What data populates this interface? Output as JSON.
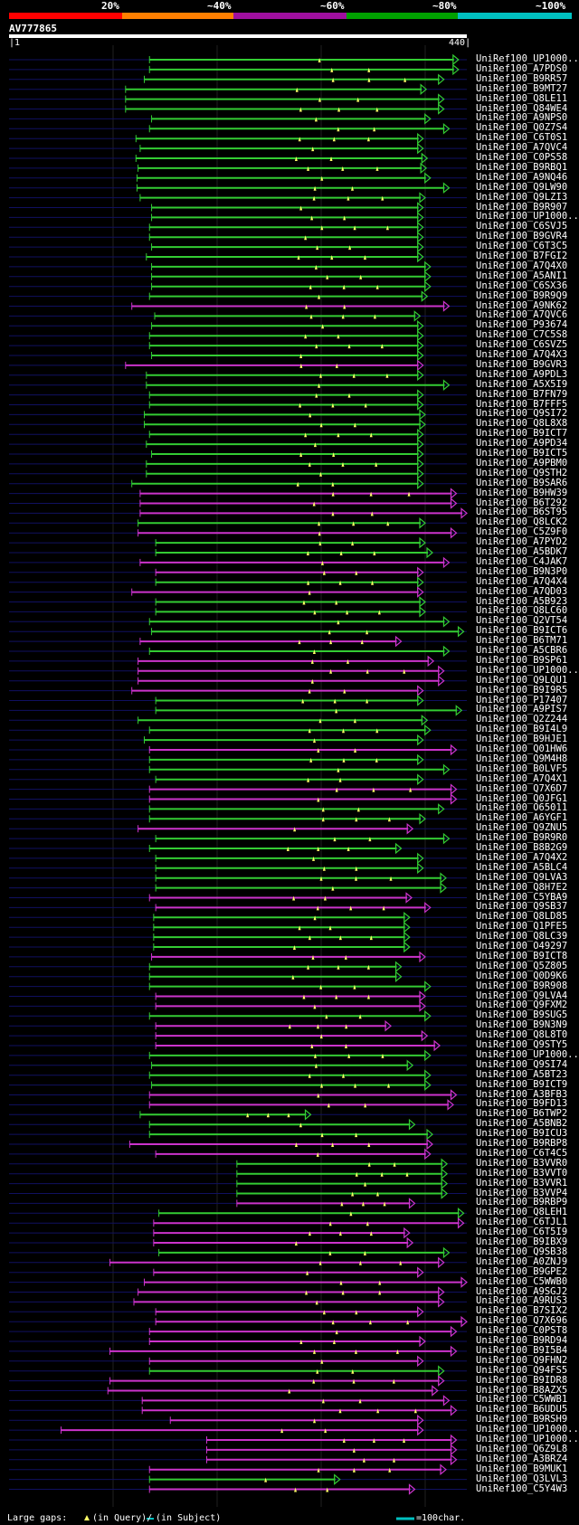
{
  "colors": {
    "bg": "#000000",
    "identity_bins": [
      "#ff0000",
      "#ff7f00",
      "#9f0f9f",
      "#00a000",
      "#00c0c0"
    ],
    "green": "#33cc33",
    "magenta": "#cc33cc",
    "dashes": "#101060",
    "grid": "#202020",
    "marker": "#ffff66"
  },
  "header": {
    "scale_labels": [
      "20%",
      "~40%",
      "~60%",
      "~80%",
      "~100%"
    ]
  },
  "query": {
    "id": "AV777865",
    "start_label": "1",
    "end_label": "440",
    "length": 440
  },
  "footer": {
    "gaps_label": "Large gaps:",
    "query_note": "(in Query)/",
    "subject_note": "(in Subject)",
    "scale_note": "=100char."
  },
  "hits": [
    {
      "name": "UniRef100_UP1000..",
      "s": 135,
      "e": 432,
      "c": "g"
    },
    {
      "name": "UniRef100_A7PDS0",
      "s": 135,
      "e": 432,
      "c": "g"
    },
    {
      "name": "UniRef100_B9RR57",
      "s": 130,
      "e": 418,
      "c": "g"
    },
    {
      "name": "UniRef100_B9MT27",
      "s": 112,
      "e": 401,
      "c": "g"
    },
    {
      "name": "UniRef100_Q8LE11",
      "s": 112,
      "e": 418,
      "c": "g"
    },
    {
      "name": "UniRef100_Q84WE4",
      "s": 112,
      "e": 418,
      "c": "g"
    },
    {
      "name": "UniRef100_A9NPS0",
      "s": 137,
      "e": 405,
      "c": "g"
    },
    {
      "name": "UniRef100_Q0Z7S4",
      "s": 135,
      "e": 423,
      "c": "g"
    },
    {
      "name": "UniRef100_C6T0S1",
      "s": 122,
      "e": 398,
      "c": "g"
    },
    {
      "name": "UniRef100_A7QVC4",
      "s": 126,
      "e": 398,
      "c": "g"
    },
    {
      "name": "UniRef100_C0PS58",
      "s": 122,
      "e": 402,
      "c": "g"
    },
    {
      "name": "UniRef100_B9RBQ1",
      "s": 124,
      "e": 401,
      "c": "g"
    },
    {
      "name": "UniRef100_A9NQ46",
      "s": 123,
      "e": 405,
      "c": "g"
    },
    {
      "name": "UniRef100_Q9LW90",
      "s": 123,
      "e": 423,
      "c": "g"
    },
    {
      "name": "UniRef100_Q9LZI3",
      "s": 126,
      "e": 400,
      "c": "g"
    },
    {
      "name": "UniRef100_B9R907",
      "s": 137,
      "e": 398,
      "c": "g"
    },
    {
      "name": "UniRef100_UP1000..",
      "s": 137,
      "e": 398,
      "c": "g"
    },
    {
      "name": "UniRef100_C6SVJ5",
      "s": 135,
      "e": 398,
      "c": "g"
    },
    {
      "name": "UniRef100_B9GVR4",
      "s": 135,
      "e": 398,
      "c": "g"
    },
    {
      "name": "UniRef100_C6T3C5",
      "s": 137,
      "e": 398,
      "c": "g"
    },
    {
      "name": "UniRef100_B7FGI2",
      "s": 132,
      "e": 398,
      "c": "g"
    },
    {
      "name": "UniRef100_A7Q4X0",
      "s": 137,
      "e": 405,
      "c": "g"
    },
    {
      "name": "UniRef100_A5ANI1",
      "s": 137,
      "e": 405,
      "c": "g"
    },
    {
      "name": "UniRef100_C6SX36",
      "s": 137,
      "e": 405,
      "c": "g"
    },
    {
      "name": "UniRef100_B9R9Q9",
      "s": 135,
      "e": 402,
      "c": "g"
    },
    {
      "name": "UniRef100_A9NK62",
      "s": 118,
      "e": 423,
      "c": "m"
    },
    {
      "name": "UniRef100_A7QVC6",
      "s": 140,
      "e": 395,
      "c": "g"
    },
    {
      "name": "UniRef100_P93674",
      "s": 137,
      "e": 398,
      "c": "g"
    },
    {
      "name": "UniRef100_C7C5S8",
      "s": 135,
      "e": 398,
      "c": "g"
    },
    {
      "name": "UniRef100_C6SVZ5",
      "s": 135,
      "e": 398,
      "c": "g"
    },
    {
      "name": "UniRef100_A7Q4X3",
      "s": 137,
      "e": 398,
      "c": "g"
    },
    {
      "name": "UniRef100_B9GVR3",
      "s": 112,
      "e": 398,
      "c": "m"
    },
    {
      "name": "UniRef100_A9PDL3",
      "s": 132,
      "e": 398,
      "c": "g"
    },
    {
      "name": "UniRef100_A5X5I9",
      "s": 132,
      "e": 423,
      "c": "g"
    },
    {
      "name": "UniRef100_B7FN79",
      "s": 135,
      "e": 398,
      "c": "g"
    },
    {
      "name": "UniRef100_B7FFF5",
      "s": 135,
      "e": 398,
      "c": "g"
    },
    {
      "name": "UniRef100_Q9SI72",
      "s": 130,
      "e": 400,
      "c": "g"
    },
    {
      "name": "UniRef100_Q8L8X8",
      "s": 130,
      "e": 400,
      "c": "g"
    },
    {
      "name": "UniRef100_B9ICT7",
      "s": 135,
      "e": 398,
      "c": "g"
    },
    {
      "name": "UniRef100_A9PD34",
      "s": 132,
      "e": 398,
      "c": "g"
    },
    {
      "name": "UniRef100_B9ICT5",
      "s": 137,
      "e": 398,
      "c": "g"
    },
    {
      "name": "UniRef100_A9PBM0",
      "s": 132,
      "e": 398,
      "c": "g"
    },
    {
      "name": "UniRef100_Q9STH2",
      "s": 132,
      "e": 398,
      "c": "g"
    },
    {
      "name": "UniRef100_B9SAR6",
      "s": 118,
      "e": 398,
      "c": "g"
    },
    {
      "name": "UniRef100_B9HW39",
      "s": 126,
      "e": 430,
      "c": "m"
    },
    {
      "name": "UniRef100_B6T292",
      "s": 126,
      "e": 430,
      "c": "m"
    },
    {
      "name": "UniRef100_B6ST95",
      "s": 126,
      "e": 440,
      "c": "m"
    },
    {
      "name": "UniRef100_Q8LCK2",
      "s": 124,
      "e": 400,
      "c": "g"
    },
    {
      "name": "UniRef100_C5Z9F0",
      "s": 124,
      "e": 430,
      "c": "m"
    },
    {
      "name": "UniRef100_A7PYD2",
      "s": 141,
      "e": 400,
      "c": "g"
    },
    {
      "name": "UniRef100_A5BDK7",
      "s": 141,
      "e": 407,
      "c": "g"
    },
    {
      "name": "UniRef100_C4JAK7",
      "s": 126,
      "e": 423,
      "c": "m"
    },
    {
      "name": "UniRef100_B9N3P0",
      "s": 141,
      "e": 398,
      "c": "m"
    },
    {
      "name": "UniRef100_A7Q4X4",
      "s": 141,
      "e": 398,
      "c": "g"
    },
    {
      "name": "UniRef100_A7QD03",
      "s": 118,
      "e": 398,
      "c": "m"
    },
    {
      "name": "UniRef100_A5B923",
      "s": 141,
      "e": 400,
      "c": "g"
    },
    {
      "name": "UniRef100_Q8LC60",
      "s": 141,
      "e": 400,
      "c": "g"
    },
    {
      "name": "UniRef100_Q2VT54",
      "s": 135,
      "e": 423,
      "c": "g"
    },
    {
      "name": "UniRef100_B9ICT6",
      "s": 137,
      "e": 437,
      "c": "g"
    },
    {
      "name": "UniRef100_B6TM71",
      "s": 126,
      "e": 377,
      "c": "m"
    },
    {
      "name": "UniRef100_A5CBR6",
      "s": 135,
      "e": 423,
      "c": "g"
    },
    {
      "name": "UniRef100_B9SP61",
      "s": 124,
      "e": 408,
      "c": "m"
    },
    {
      "name": "UniRef100_UP1000..",
      "s": 124,
      "e": 418,
      "c": "m"
    },
    {
      "name": "UniRef100_Q9LQU1",
      "s": 124,
      "e": 418,
      "c": "m"
    },
    {
      "name": "UniRef100_B9I9R5",
      "s": 118,
      "e": 398,
      "c": "m"
    },
    {
      "name": "UniRef100_P17407",
      "s": 141,
      "e": 398,
      "c": "g"
    },
    {
      "name": "UniRef100_A9PIS7",
      "s": 141,
      "e": 435,
      "c": "g"
    },
    {
      "name": "UniRef100_Q2Z244",
      "s": 124,
      "e": 402,
      "c": "g"
    },
    {
      "name": "UniRef100_B9I4L9",
      "s": 135,
      "e": 405,
      "c": "g"
    },
    {
      "name": "UniRef100_B9HJE1",
      "s": 130,
      "e": 398,
      "c": "g"
    },
    {
      "name": "UniRef100_Q01HW6",
      "s": 135,
      "e": 430,
      "c": "m"
    },
    {
      "name": "UniRef100_Q9M4H8",
      "s": 135,
      "e": 398,
      "c": "g"
    },
    {
      "name": "UniRef100_B0LVF5",
      "s": 135,
      "e": 423,
      "c": "g"
    },
    {
      "name": "UniRef100_A7Q4X1",
      "s": 141,
      "e": 398,
      "c": "g"
    },
    {
      "name": "UniRef100_Q7X6D7",
      "s": 135,
      "e": 430,
      "c": "m"
    },
    {
      "name": "UniRef100_Q0JFG1",
      "s": 135,
      "e": 430,
      "c": "m"
    },
    {
      "name": "UniRef100_O65011",
      "s": 135,
      "e": 418,
      "c": "g"
    },
    {
      "name": "UniRef100_A6YGF1",
      "s": 135,
      "e": 400,
      "c": "g"
    },
    {
      "name": "UniRef100_Q9ZNU5",
      "s": 124,
      "e": 388,
      "c": "m"
    },
    {
      "name": "UniRef100_B9R9R0",
      "s": 141,
      "e": 423,
      "c": "g"
    },
    {
      "name": "UniRef100_B8B2G9",
      "s": 135,
      "e": 377,
      "c": "g"
    },
    {
      "name": "UniRef100_A7Q4X2",
      "s": 141,
      "e": 398,
      "c": "g"
    },
    {
      "name": "UniRef100_A5BLC4",
      "s": 141,
      "e": 398,
      "c": "g"
    },
    {
      "name": "UniRef100_Q9LVA3",
      "s": 141,
      "e": 420,
      "c": "g"
    },
    {
      "name": "UniRef100_Q8H7E2",
      "s": 141,
      "e": 420,
      "c": "g"
    },
    {
      "name": "UniRef100_C5YBA9",
      "s": 135,
      "e": 387,
      "c": "m"
    },
    {
      "name": "UniRef100_Q9SB37",
      "s": 141,
      "e": 405,
      "c": "m"
    },
    {
      "name": "UniRef100_Q8LD85",
      "s": 139,
      "e": 385,
      "c": "g"
    },
    {
      "name": "UniRef100_Q1PFE5",
      "s": 139,
      "e": 385,
      "c": "g"
    },
    {
      "name": "UniRef100_Q8LC39",
      "s": 139,
      "e": 385,
      "c": "g"
    },
    {
      "name": "UniRef100_O49297",
      "s": 139,
      "e": 385,
      "c": "g"
    },
    {
      "name": "UniRef100_B9ICT8",
      "s": 137,
      "e": 400,
      "c": "m"
    },
    {
      "name": "UniRef100_Q5Z805",
      "s": 135,
      "e": 377,
      "c": "g"
    },
    {
      "name": "UniRef100_Q0D9K6",
      "s": 135,
      "e": 377,
      "c": "g"
    },
    {
      "name": "UniRef100_B9R908",
      "s": 135,
      "e": 405,
      "c": "g"
    },
    {
      "name": "UniRef100_Q9LVA4",
      "s": 141,
      "e": 400,
      "c": "m"
    },
    {
      "name": "UniRef100_Q9FXM2",
      "s": 141,
      "e": 400,
      "c": "m"
    },
    {
      "name": "UniRef100_B9SUG5",
      "s": 135,
      "e": 405,
      "c": "g"
    },
    {
      "name": "UniRef100_B9N3N9",
      "s": 141,
      "e": 367,
      "c": "m"
    },
    {
      "name": "UniRef100_Q8L8T0",
      "s": 141,
      "e": 402,
      "c": "m"
    },
    {
      "name": "UniRef100_Q9STY5",
      "s": 141,
      "e": 414,
      "c": "m"
    },
    {
      "name": "UniRef100_UP1000..",
      "s": 135,
      "e": 405,
      "c": "g"
    },
    {
      "name": "UniRef100_Q9SI74",
      "s": 137,
      "e": 388,
      "c": "g"
    },
    {
      "name": "UniRef100_A5BT23",
      "s": 135,
      "e": 405,
      "c": "g"
    },
    {
      "name": "UniRef100_B9ICT9",
      "s": 137,
      "e": 405,
      "c": "g"
    },
    {
      "name": "UniRef100_A3BFB3",
      "s": 135,
      "e": 430,
      "c": "m"
    },
    {
      "name": "UniRef100_B9FD13",
      "s": 135,
      "e": 427,
      "c": "m"
    },
    {
      "name": "UniRef100_B6TWP2",
      "s": 126,
      "e": 290,
      "c": "g"
    },
    {
      "name": "UniRef100_A5BNB2",
      "s": 135,
      "e": 390,
      "c": "g"
    },
    {
      "name": "UniRef100_B9ICU3",
      "s": 135,
      "e": 407,
      "c": "g"
    },
    {
      "name": "UniRef100_B9RBP8",
      "s": 116,
      "e": 407,
      "c": "m"
    },
    {
      "name": "UniRef100_C6T4C5",
      "s": 141,
      "e": 405,
      "c": "m"
    },
    {
      "name": "UniRef100_B3VVR0",
      "s": 219,
      "e": 421,
      "c": "g"
    },
    {
      "name": "UniRef100_B3VVT0",
      "s": 219,
      "e": 421,
      "c": "g"
    },
    {
      "name": "UniRef100_B3VVR1",
      "s": 219,
      "e": 421,
      "c": "g"
    },
    {
      "name": "UniRef100_B3VVP4",
      "s": 219,
      "e": 421,
      "c": "g"
    },
    {
      "name": "UniRef100_B9RBP9",
      "s": 219,
      "e": 390,
      "c": "m"
    },
    {
      "name": "UniRef100_Q8LEH1",
      "s": 144,
      "e": 437,
      "c": "g"
    },
    {
      "name": "UniRef100_C6TJL1",
      "s": 139,
      "e": 437,
      "c": "m"
    },
    {
      "name": "UniRef100_C6T5I9",
      "s": 139,
      "e": 385,
      "c": "m"
    },
    {
      "name": "UniRef100_B9IBX9",
      "s": 139,
      "e": 388,
      "c": "m"
    },
    {
      "name": "UniRef100_Q9SB38",
      "s": 144,
      "e": 423,
      "c": "g"
    },
    {
      "name": "UniRef100_A0ZNJ9",
      "s": 97,
      "e": 418,
      "c": "m"
    },
    {
      "name": "UniRef100_B9GPE2",
      "s": 139,
      "e": 398,
      "c": "m"
    },
    {
      "name": "UniRef100_C5WWB0",
      "s": 130,
      "e": 440,
      "c": "m"
    },
    {
      "name": "UniRef100_A9SGJ2",
      "s": 124,
      "e": 418,
      "c": "m"
    },
    {
      "name": "UniRef100_A9RUS3",
      "s": 120,
      "e": 418,
      "c": "m"
    },
    {
      "name": "UniRef100_B7SIX2",
      "s": 141,
      "e": 398,
      "c": "m"
    },
    {
      "name": "UniRef100_Q7X696",
      "s": 141,
      "e": 440,
      "c": "m"
    },
    {
      "name": "UniRef100_C0PST8",
      "s": 135,
      "e": 430,
      "c": "m"
    },
    {
      "name": "UniRef100_B9RD94",
      "s": 135,
      "e": 400,
      "c": "m"
    },
    {
      "name": "UniRef100_B9I5B4",
      "s": 97,
      "e": 430,
      "c": "m"
    },
    {
      "name": "UniRef100_Q9FHN2",
      "s": 135,
      "e": 398,
      "c": "m"
    },
    {
      "name": "UniRef100_Q94FS5",
      "s": 135,
      "e": 418,
      "c": "g"
    },
    {
      "name": "UniRef100_B9IDR8",
      "s": 97,
      "e": 418,
      "c": "m"
    },
    {
      "name": "UniRef100_B8AZX5",
      "s": 95,
      "e": 412,
      "c": "m"
    },
    {
      "name": "UniRef100_C5WWB1",
      "s": 128,
      "e": 423,
      "c": "m"
    },
    {
      "name": "UniRef100_B6UDU5",
      "s": 128,
      "e": 430,
      "c": "m"
    },
    {
      "name": "UniRef100_B9RSH9",
      "s": 155,
      "e": 398,
      "c": "m"
    },
    {
      "name": "UniRef100_UP1000..",
      "s": 50,
      "e": 398,
      "c": "m"
    },
    {
      "name": "UniRef100_UP1000..",
      "s": 190,
      "e": 430,
      "c": "m"
    },
    {
      "name": "UniRef100_Q6Z9L8",
      "s": 190,
      "e": 430,
      "c": "m"
    },
    {
      "name": "UniRef100_A3BRZ4",
      "s": 190,
      "e": 430,
      "c": "m"
    },
    {
      "name": "UniRef100_B9MUK1",
      "s": 135,
      "e": 420,
      "c": "m"
    },
    {
      "name": "UniRef100_Q3LVL3",
      "s": 135,
      "e": 318,
      "c": "g"
    },
    {
      "name": "UniRef100_C5Y4W3",
      "s": 135,
      "e": 390,
      "c": "m"
    }
  ]
}
